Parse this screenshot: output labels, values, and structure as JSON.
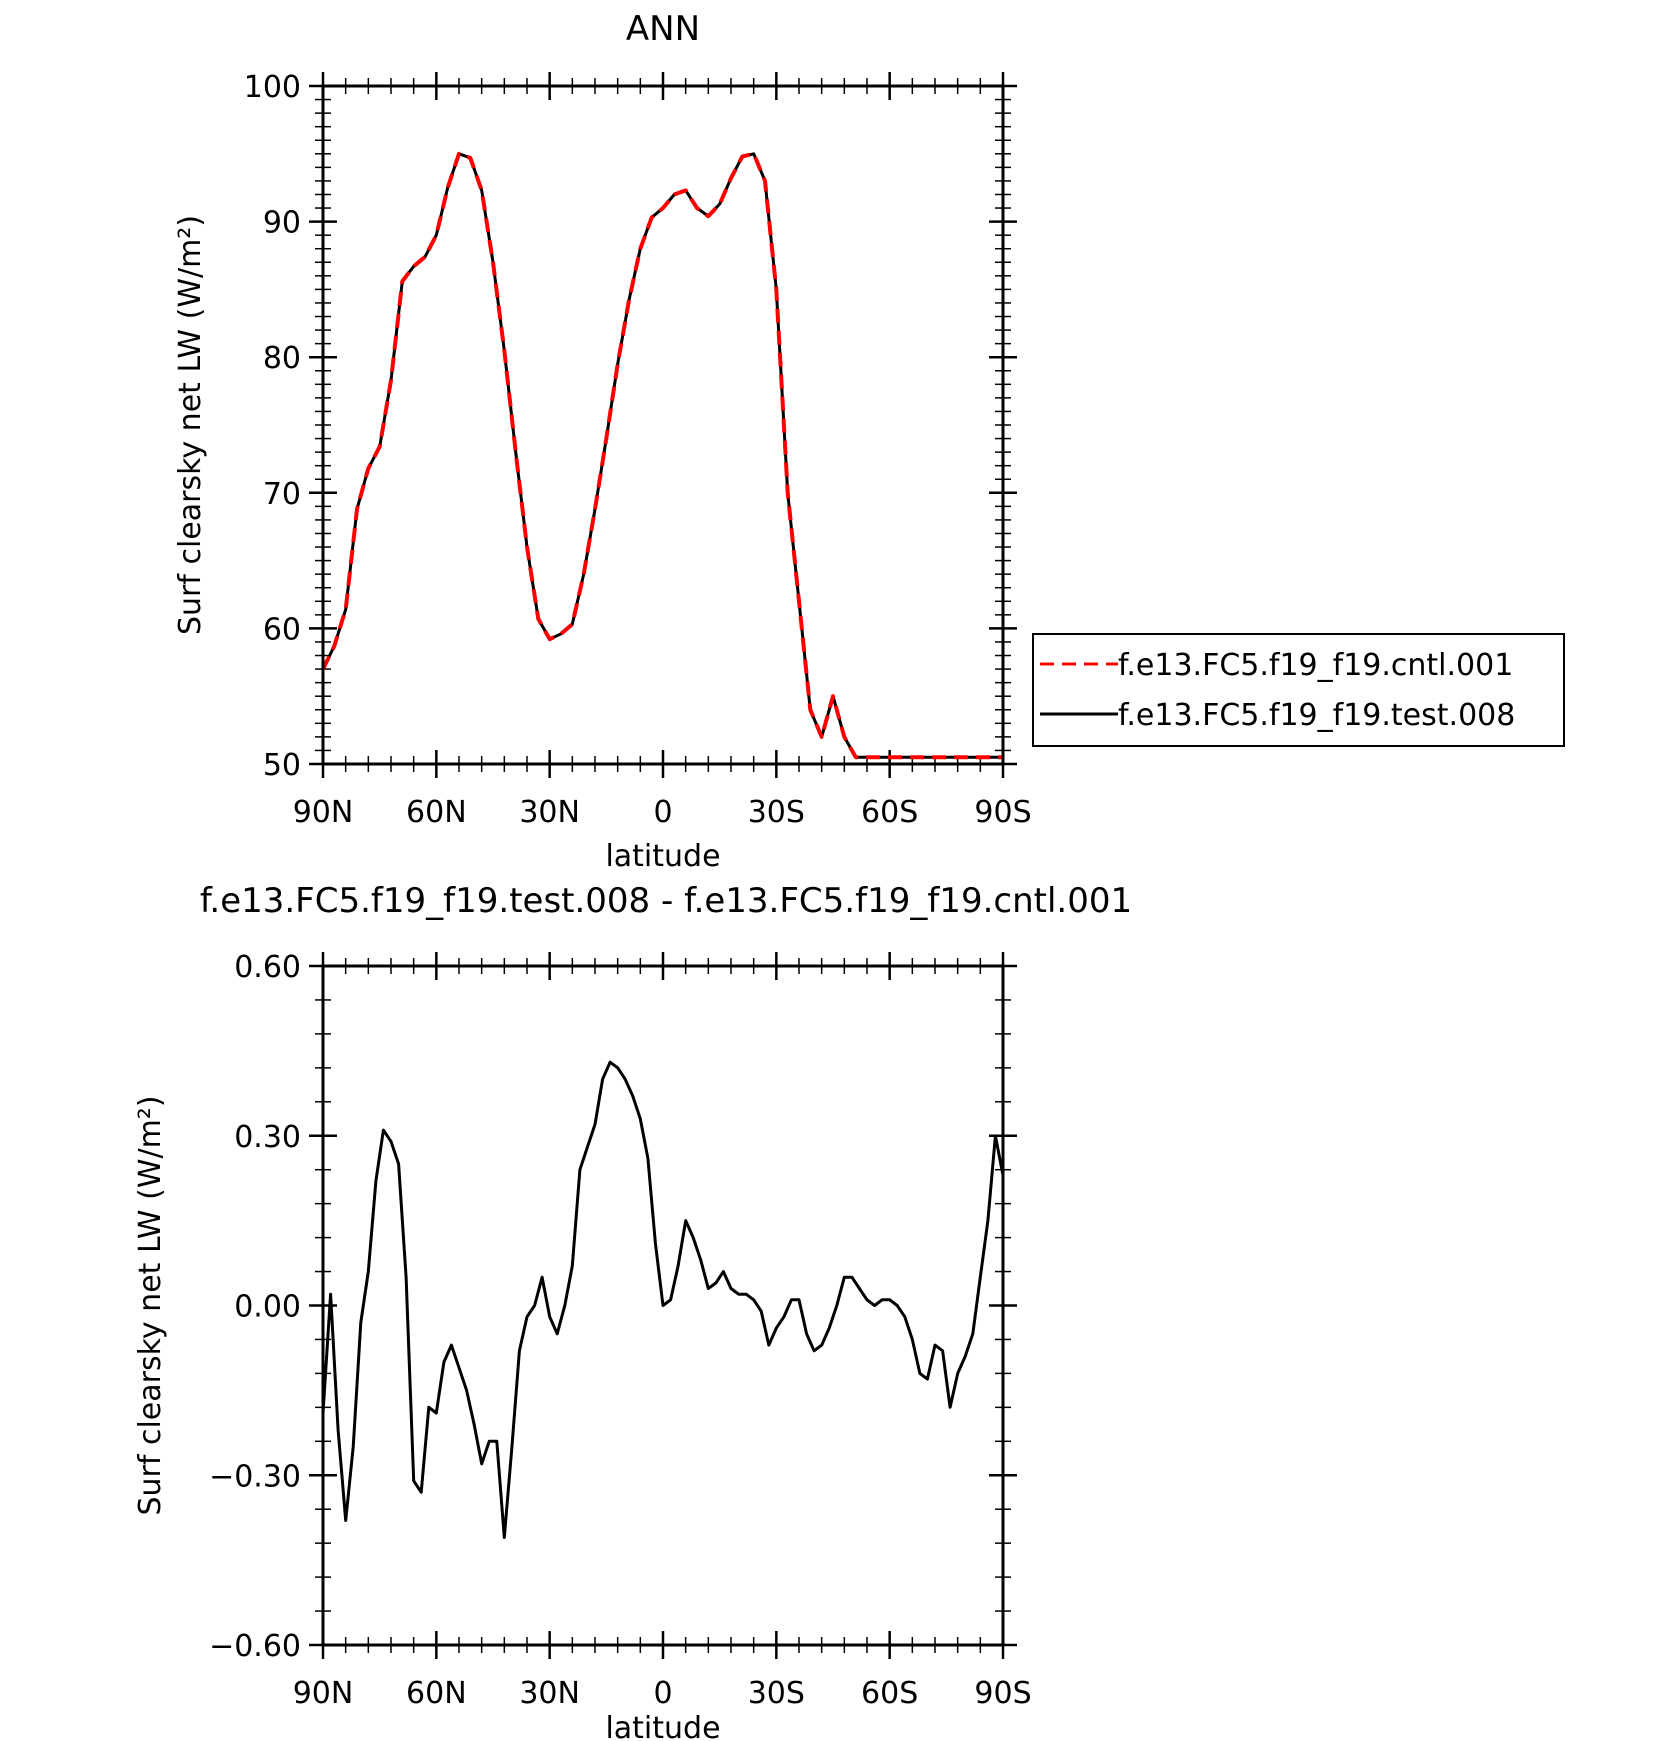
{
  "chart_data": [
    {
      "type": "line",
      "title": "ANN",
      "xlabel": "latitude",
      "ylabel": "Surf clearsky net LW (W/m²)",
      "xlim": [
        90,
        -90
      ],
      "ylim": [
        50,
        100
      ],
      "xticks": [
        {
          "value": 90,
          "label": "90N"
        },
        {
          "value": 60,
          "label": "60N"
        },
        {
          "value": 30,
          "label": "30N"
        },
        {
          "value": 0,
          "label": "0"
        },
        {
          "value": -30,
          "label": "30S"
        },
        {
          "value": -60,
          "label": "60S"
        },
        {
          "value": -90,
          "label": "90S"
        }
      ],
      "yticks": [
        {
          "value": 100,
          "label": "100"
        },
        {
          "value": 90,
          "label": "90"
        },
        {
          "value": 80,
          "label": "80"
        },
        {
          "value": 70,
          "label": "70"
        },
        {
          "value": 60,
          "label": "60"
        },
        {
          "value": 50,
          "label": "50"
        }
      ],
      "legend": "right",
      "series": [
        {
          "name": "f.e13.FC5.f19_f19.cntl.001",
          "color": "#ff0000",
          "dashed": true,
          "x": [
            90,
            87,
            84,
            81,
            78,
            75,
            72,
            69,
            66,
            63,
            60,
            57,
            54,
            51,
            48,
            45,
            42,
            39,
            36,
            33,
            30,
            27,
            24,
            21,
            18,
            15,
            12,
            9,
            6,
            3,
            0,
            -3,
            -6,
            -9,
            -12,
            -15,
            -18,
            -21,
            -24,
            -27,
            -30,
            -33,
            -36,
            -39,
            -42,
            -45,
            -48,
            -51,
            -54,
            -57,
            -60,
            -63,
            -66,
            -69,
            -72,
            -75,
            -78,
            -81,
            -84,
            -87,
            -90
          ],
          "y": [
            57.0,
            58.7,
            61.4,
            68.8,
            71.8,
            73.4,
            78.3,
            85.6,
            86.7,
            87.4,
            89.0,
            92.5,
            95.0,
            94.7,
            92.3,
            87.0,
            80.5,
            73.0,
            66.0,
            60.7,
            59.2,
            59.6,
            60.3,
            64.0,
            68.8,
            74.0,
            79.5,
            84.2,
            88.0,
            90.3,
            91.0,
            92.0,
            92.3,
            91.0,
            90.4,
            91.3,
            93.2,
            94.8,
            95.0,
            93.0,
            85.0,
            70.0,
            62.0,
            54.0,
            52.0,
            55.0,
            52.0,
            50.5,
            50.5,
            50.5,
            50.5,
            50.5,
            50.5,
            50.5,
            50.5,
            50.5,
            50.5,
            50.5,
            50.5,
            50.5,
            50.5
          ]
        },
        {
          "name": "f.e13.FC5.f19_f19.test.008",
          "color": "#000000",
          "dashed": false,
          "x": [
            90,
            87,
            84,
            81,
            78,
            75,
            72,
            69,
            66,
            63,
            60,
            57,
            54,
            51,
            48,
            45,
            42,
            39,
            36,
            33,
            30,
            27,
            24,
            21,
            18,
            15,
            12,
            9,
            6,
            3,
            0,
            -3,
            -6,
            -9,
            -12,
            -15,
            -18,
            -21,
            -24,
            -27,
            -30,
            -33,
            -36,
            -39,
            -42,
            -45,
            -48,
            -51,
            -54,
            -57,
            -60,
            -63,
            -66,
            -69,
            -72,
            -75,
            -78,
            -81,
            -84,
            -87,
            -90
          ],
          "y": [
            57.0,
            58.7,
            61.4,
            68.8,
            71.8,
            73.4,
            78.3,
            85.6,
            86.7,
            87.4,
            89.0,
            92.5,
            95.0,
            94.7,
            92.3,
            87.0,
            80.5,
            73.0,
            66.0,
            60.7,
            59.2,
            59.6,
            60.3,
            64.0,
            68.8,
            74.0,
            79.5,
            84.2,
            88.0,
            90.3,
            91.0,
            92.0,
            92.3,
            91.0,
            90.4,
            91.3,
            93.2,
            94.8,
            95.0,
            93.0,
            85.0,
            70.0,
            62.0,
            54.0,
            52.0,
            55.0,
            52.0,
            50.5,
            50.5,
            50.5,
            50.5,
            50.5,
            50.5,
            50.5,
            50.5,
            50.5,
            50.5,
            50.5,
            50.5,
            50.5,
            50.5
          ]
        }
      ]
    },
    {
      "type": "line",
      "title": "f.e13.FC5.f19_f19.test.008 - f.e13.FC5.f19_f19.cntl.001",
      "xlabel": "latitude",
      "ylabel": "Surf clearsky net LW (W/m²)",
      "xlim": [
        90,
        -90
      ],
      "ylim": [
        -0.6,
        0.6
      ],
      "xticks": [
        {
          "value": 90,
          "label": "90N"
        },
        {
          "value": 60,
          "label": "60N"
        },
        {
          "value": 30,
          "label": "30N"
        },
        {
          "value": 0,
          "label": "0"
        },
        {
          "value": -30,
          "label": "30S"
        },
        {
          "value": -60,
          "label": "60S"
        },
        {
          "value": -90,
          "label": "90S"
        }
      ],
      "yticks": [
        {
          "value": 0.6,
          "label": "0.60"
        },
        {
          "value": 0.3,
          "label": "0.30"
        },
        {
          "value": 0.0,
          "label": "0.00"
        },
        {
          "value": -0.3,
          "label": "−0.30"
        },
        {
          "value": -0.6,
          "label": "−0.60"
        }
      ],
      "series": [
        {
          "color": "#000000",
          "dashed": false,
          "x": [
            90,
            88,
            86,
            84,
            82,
            80,
            78,
            76,
            74,
            72,
            70,
            68,
            66,
            64,
            62,
            60,
            58,
            56,
            54,
            52,
            50,
            48,
            46,
            44,
            42,
            40,
            38,
            36,
            34,
            32,
            30,
            28,
            26,
            24,
            22,
            20,
            18,
            16,
            14,
            12,
            10,
            8,
            6,
            4,
            2,
            0,
            -2,
            -4,
            -6,
            -8,
            -10,
            -12,
            -14,
            -16,
            -18,
            -20,
            -22,
            -24,
            -26,
            -28,
            -30,
            -32,
            -34,
            -36,
            -38,
            -40,
            -42,
            -44,
            -46,
            -48,
            -50,
            -52,
            -54,
            -56,
            -58,
            -60,
            -62,
            -64,
            -66,
            -68,
            -70,
            -72,
            -74,
            -76,
            -78,
            -80,
            -82,
            -84,
            -86,
            -88,
            -90
          ],
          "y": [
            -0.19,
            0.02,
            -0.22,
            -0.38,
            -0.25,
            -0.03,
            0.06,
            0.22,
            0.31,
            0.29,
            0.25,
            0.05,
            -0.31,
            -0.33,
            -0.18,
            -0.19,
            -0.1,
            -0.07,
            -0.11,
            -0.15,
            -0.21,
            -0.28,
            -0.24,
            -0.24,
            -0.41,
            -0.25,
            -0.08,
            -0.02,
            0.0,
            0.05,
            -0.02,
            -0.05,
            0.0,
            0.07,
            0.24,
            0.28,
            0.32,
            0.4,
            0.43,
            0.42,
            0.4,
            0.37,
            0.33,
            0.26,
            0.11,
            0.0,
            0.01,
            0.07,
            0.15,
            0.12,
            0.08,
            0.03,
            0.04,
            0.06,
            0.03,
            0.02,
            0.02,
            0.01,
            -0.01,
            -0.07,
            -0.04,
            -0.02,
            0.01,
            0.01,
            -0.05,
            -0.08,
            -0.07,
            -0.04,
            0.0,
            0.05,
            0.05,
            0.03,
            0.01,
            0.0,
            0.01,
            0.01,
            0.0,
            -0.02,
            -0.06,
            -0.12,
            -0.13,
            -0.07,
            -0.08,
            -0.18,
            -0.12,
            -0.09,
            -0.05,
            0.05,
            0.15,
            0.3,
            0.23
          ]
        }
      ]
    }
  ]
}
